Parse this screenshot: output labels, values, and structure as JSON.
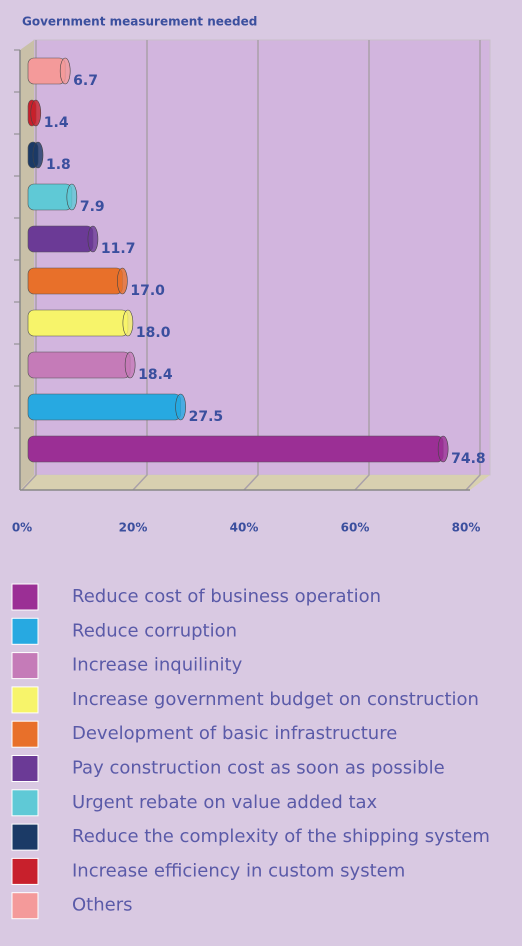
{
  "chart_data": {
    "type": "bar",
    "orientation": "horizontal",
    "title": "Government measurement needed",
    "categories": [
      "Reduce cost of business operation",
      "Reduce corruption",
      "Increase inquilinity",
      "Increase government budget on construction",
      "Development of basic infrastructure",
      "Pay construction cost as soon as possible",
      "Urgent rebate on value added tax",
      "Reduce the complexity of the shipping system",
      "Increase efficiency in custom system",
      "Others"
    ],
    "values": [
      74.8,
      27.5,
      18.4,
      18.0,
      17.0,
      11.7,
      7.9,
      1.8,
      1.4,
      6.7
    ],
    "value_labels": [
      "74.8",
      "27.5",
      "18.4",
      "18.0",
      "17.0",
      "11.7",
      "7.9",
      "1.8",
      "1.4",
      "6.7"
    ],
    "colors": [
      "#9b2f95",
      "#27a9e1",
      "#c57bb8",
      "#f7f46a",
      "#e8702a",
      "#6b3a96",
      "#5fc9d6",
      "#1b3a66",
      "#c8202c",
      "#f49a9a"
    ],
    "xlim": [
      0,
      80
    ],
    "xticks": [
      {
        "value": 0,
        "label": "0%"
      },
      {
        "value": 20,
        "label": "20%"
      },
      {
        "value": 40,
        "label": "40%"
      },
      {
        "value": 60,
        "label": "60%"
      },
      {
        "value": 80,
        "label": "80%"
      }
    ],
    "grid": true,
    "legend": "bottom"
  }
}
